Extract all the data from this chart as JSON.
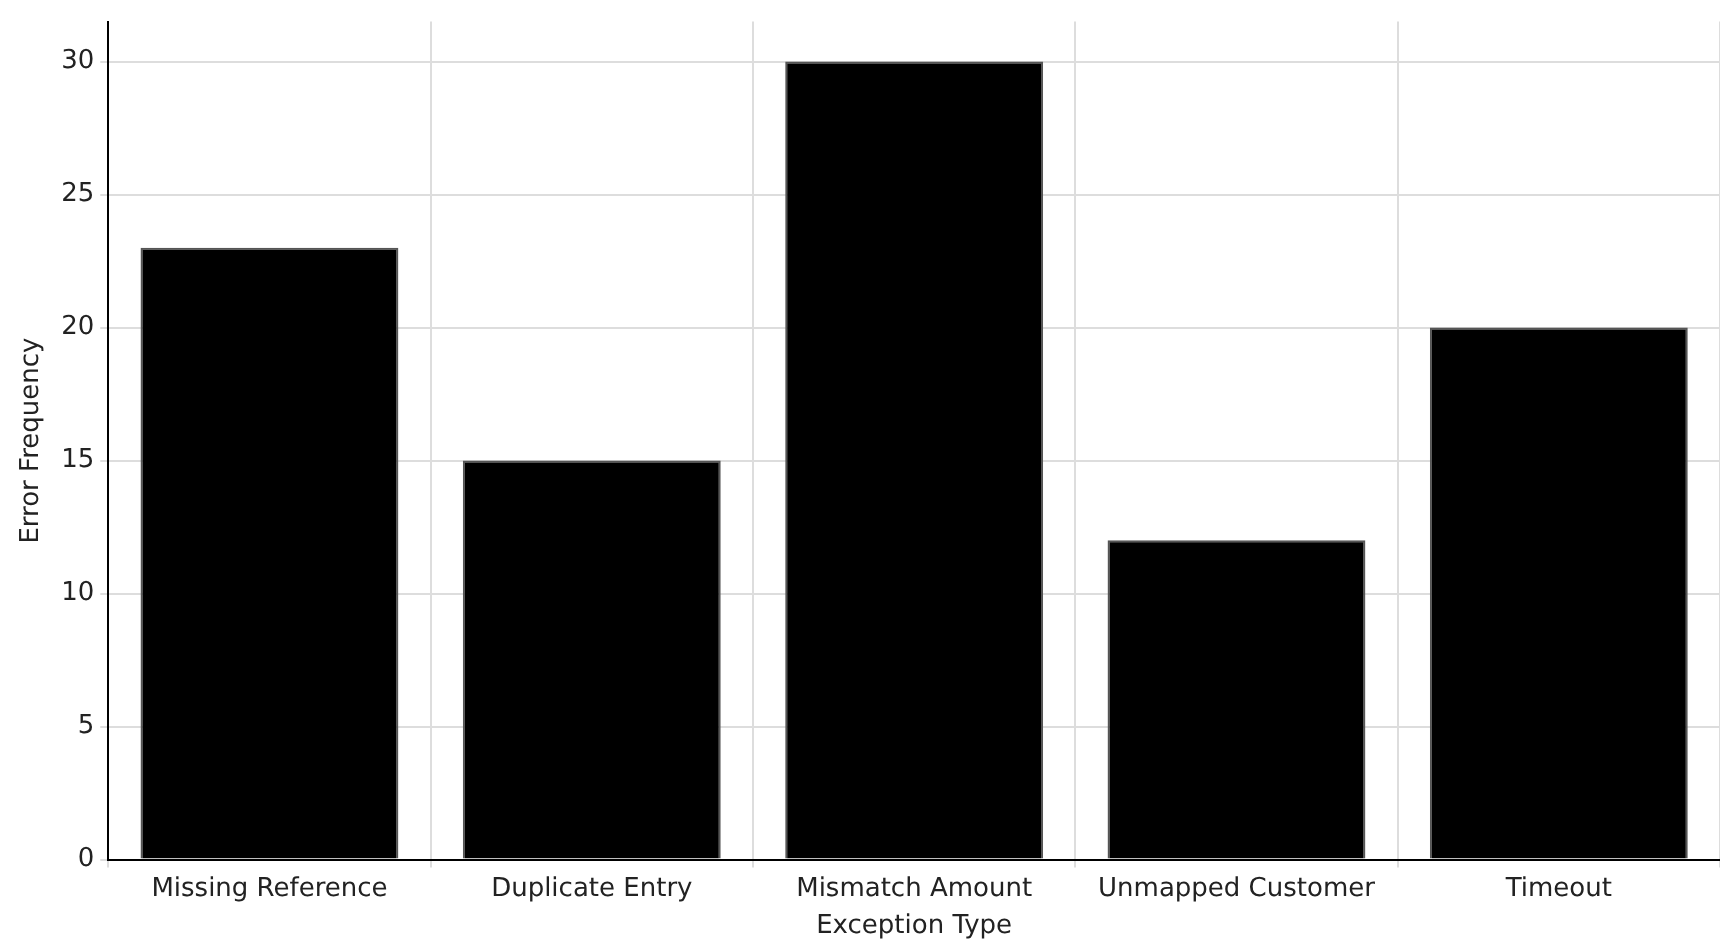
{
  "chart_data": {
    "type": "bar",
    "xlabel": "Exception Type",
    "ylabel": "Error Frequency",
    "categories": [
      "Missing Reference",
      "Duplicate Entry",
      "Mismatch Amount",
      "Unmapped Customer",
      "Timeout"
    ],
    "values": [
      23,
      15,
      30,
      12,
      20
    ],
    "color": "#000000",
    "ylim": [
      0,
      31.5
    ],
    "yticks": [
      0,
      5,
      10,
      15,
      20,
      25,
      30
    ],
    "grid": true,
    "legend": false
  }
}
